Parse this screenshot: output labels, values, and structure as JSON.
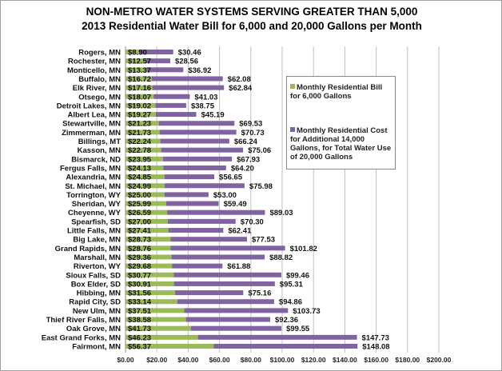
{
  "chart_data": {
    "type": "bar",
    "orientation": "horizontal",
    "stacked": true,
    "title": "NON-METRO WATER SYSTEMS SERVING GREATER THAN 5,000",
    "subtitle": "2013 Residential Water Bill for 6,000 and 20,000 Gallons per Month",
    "categories": [
      "Rogers, MN",
      "Rochester, MN",
      "Monticello, MN",
      "Buffalo, MN",
      "Elk River, MN",
      "Otsego, MN",
      "Detroit Lakes, MN",
      "Albert Lea, MN",
      "Stewartville, MN",
      "Zimmerman, MN",
      "Billings, MT",
      "Kasson, MN",
      "Bismarck, ND",
      "Fergus Falls, MN",
      "Alexandria, MN",
      "St. Michael, MN",
      "Torrington, WY",
      "Sheridan, WY",
      "Cheyenne, WY",
      "Spearfish, SD",
      "Little Falls, MN",
      "Big Lake, MN",
      "Grand Rapids, MN",
      "Marshall, MN",
      "Riverton, WY",
      "Sioux Falls, SD",
      "Box Elder, SD",
      "Hibbing, MN",
      "Rapid City, SD",
      "New Ulm, MN",
      "Thief River Falls, MN",
      "Oak Grove, MN",
      "East Grand Forks, MN",
      "Fairmont, MN"
    ],
    "series": [
      {
        "name": "Monthly Residential Bill for 6,000 Gallons",
        "color": "#9bbb59",
        "values": [
          8.9,
          12.57,
          13.37,
          16.72,
          17.16,
          18.07,
          19.02,
          19.27,
          21.23,
          21.73,
          22.24,
          22.78,
          23.95,
          24.13,
          24.85,
          24.99,
          25.0,
          25.99,
          26.59,
          27.0,
          27.41,
          28.73,
          28.76,
          29.36,
          29.68,
          30.77,
          30.91,
          31.56,
          33.14,
          37.51,
          38.58,
          41.73,
          46.23,
          56.37
        ],
        "labels": [
          "$8.90",
          "$12.57",
          "$13.37",
          "$16.72",
          "$17.16",
          "$18.07",
          "$19.02",
          "$19.27",
          "$21.23",
          "$21.73",
          "$22.24",
          "$22.78",
          "$23.95",
          "$24.13",
          "$24.85",
          "$24.99",
          "$25.00",
          "$25.99",
          "$26.59",
          "$27.00",
          "$27.41",
          "$28.73",
          "$28.76",
          "$29.36",
          "$29.68",
          "$30.77",
          "$30.91",
          "$31.56",
          "$33.14",
          "$37.51",
          "$38.58",
          "$41.73",
          "$46.23",
          "$56.37"
        ]
      },
      {
        "name": "Monthly Residential Cost for Additional 14,000 Gallons, for Total Water Use of 20,000 Gallons",
        "color": "#8064a2",
        "totals": [
          30.46,
          28.56,
          36.92,
          62.08,
          62.84,
          41.03,
          38.75,
          45.19,
          69.53,
          70.73,
          66.24,
          75.06,
          67.93,
          64.2,
          56.65,
          75.98,
          53.0,
          59.49,
          89.03,
          70.3,
          62.41,
          77.53,
          101.82,
          88.82,
          61.88,
          99.46,
          95.31,
          75.16,
          94.86,
          103.73,
          92.36,
          99.55,
          147.73,
          148.08
        ],
        "labels": [
          "$30.46",
          "$28.56",
          "$36.92",
          "$62.08",
          "$62.84",
          "$41.03",
          "$38.75",
          "$45.19",
          "$69.53",
          "$70.73",
          "$66.24",
          "$75.06",
          "$67.93",
          "$64.20",
          "$56.65",
          "$75.98",
          "$53.00",
          "$59.49",
          "$89.03",
          "$70.30",
          "$62.41",
          "$77.53",
          "$101.82",
          "$88.82",
          "$61.88",
          "$99.46",
          "$95.31",
          "$75.16",
          "$94.86",
          "$103.73",
          "$92.36",
          "$99.55",
          "$147.73",
          "$148.08"
        ]
      }
    ],
    "xlim": [
      0,
      200
    ],
    "xticks": [
      "$0.00",
      "$20.00",
      "$40.00",
      "$60.00",
      "$80.00",
      "$100.00",
      "$120.00",
      "$140.00",
      "$160.00",
      "$180.00",
      "$200.00"
    ],
    "grid": true,
    "legend_position": "right"
  }
}
